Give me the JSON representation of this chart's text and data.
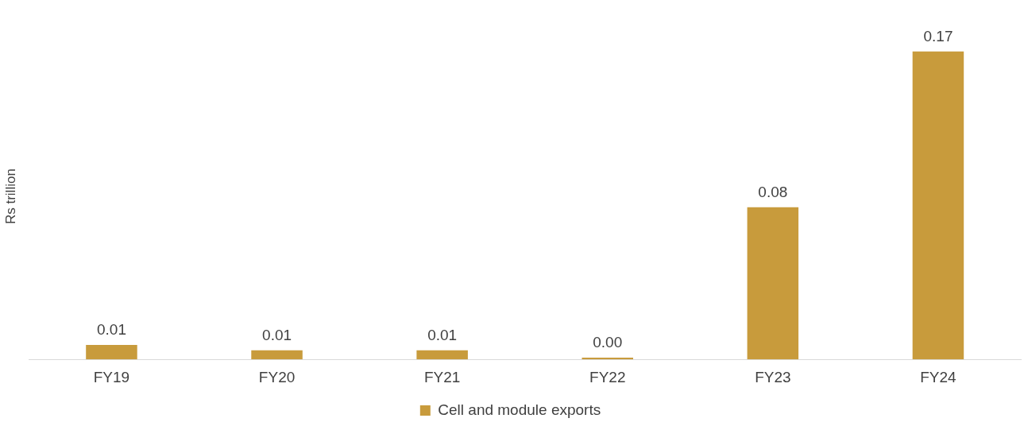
{
  "chart_data": {
    "type": "bar",
    "ylabel": "Rs trillion",
    "categories": [
      "FY19",
      "FY20",
      "FY21",
      "FY22",
      "FY23",
      "FY24"
    ],
    "series": [
      {
        "name": "Cell and module exports",
        "color": "#c89b3c",
        "values": [
          0.008,
          0.005,
          0.005,
          0.001,
          0.084,
          0.17
        ],
        "value_labels": [
          "0.01",
          "0.01",
          "0.01",
          "0.00",
          "0.08",
          "0.17"
        ]
      }
    ],
    "legend": "bottom",
    "grid": false,
    "tick_labels": "x"
  }
}
